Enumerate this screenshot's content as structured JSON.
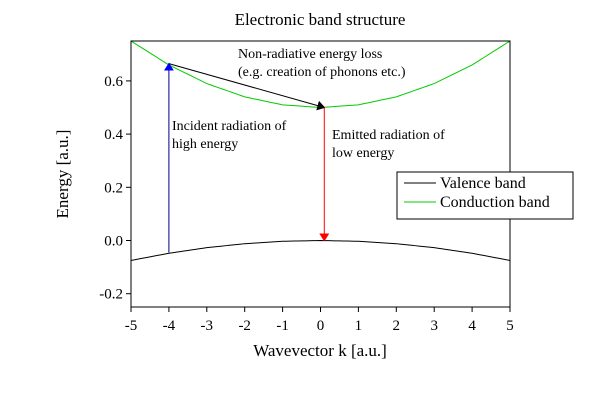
{
  "chart_data": {
    "type": "line",
    "title": "Electronic band structure",
    "xlabel": "Wavevector k [a.u.]",
    "ylabel": "Energy [a.u.]",
    "xlim": [
      -5,
      5
    ],
    "ylim": [
      -0.25,
      0.75
    ],
    "xticks": [
      -5,
      -4,
      -3,
      -2,
      -1,
      0,
      1,
      2,
      3,
      4,
      5
    ],
    "yticks": [
      -0.2,
      0.0,
      0.2,
      0.4,
      0.6
    ],
    "ytick_labels": [
      "-0.2",
      "0.0",
      "0.2",
      "0.4",
      "0.6"
    ],
    "grid": false,
    "legend_position": "right",
    "series": [
      {
        "name": "Valence band",
        "color": "#000000",
        "x": [
          -5,
          -4,
          -3,
          -2,
          -1,
          0,
          1,
          2,
          3,
          4,
          5
        ],
        "y": [
          -0.075,
          -0.048,
          -0.027,
          -0.012,
          -0.003,
          0.0,
          -0.003,
          -0.012,
          -0.027,
          -0.048,
          -0.075
        ]
      },
      {
        "name": "Conduction band",
        "color": "#00cc00",
        "x": [
          -5,
          -4,
          -3,
          -2,
          -1,
          0,
          1,
          2,
          3,
          4,
          5
        ],
        "y": [
          0.75,
          0.66,
          0.59,
          0.54,
          0.51,
          0.5,
          0.51,
          0.54,
          0.59,
          0.66,
          0.75
        ]
      }
    ],
    "arrows": [
      {
        "from": [
          -4,
          -0.045
        ],
        "to": [
          -4,
          0.665
        ],
        "color": "#00008b",
        "head": "#0000ff"
      },
      {
        "from": [
          -4,
          0.665
        ],
        "to": [
          0.1,
          0.5
        ],
        "color": "#000000",
        "head": "#000000"
      },
      {
        "from": [
          0.1,
          0.5
        ],
        "to": [
          0.1,
          0.0
        ],
        "color": "#ff0000",
        "head": "#ff0000"
      }
    ],
    "annotations": [
      {
        "lines": [
          "Non-radiative energy loss",
          "(e.g. creation of phonons etc.)"
        ]
      },
      {
        "lines": [
          "Incident radiation of",
          "high energy"
        ]
      },
      {
        "lines": [
          "Emitted radiation of",
          "low energy"
        ]
      }
    ]
  }
}
